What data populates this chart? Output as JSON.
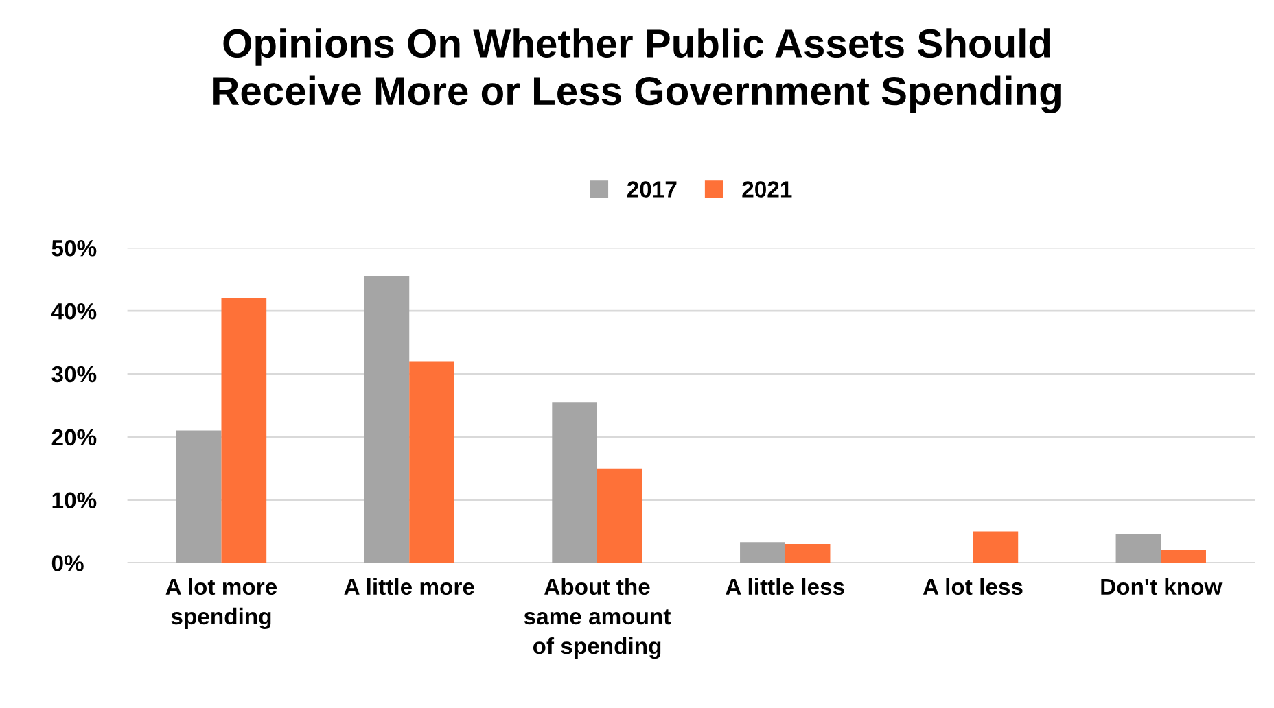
{
  "chart_data": {
    "type": "bar",
    "title": "Opinions On Whether Public Assets Should\nReceive More or Less Government Spending",
    "categories": [
      "A lot more\nspending",
      "A little more",
      "About the\nsame amount\nof spending",
      "A little less",
      "A lot less",
      "Don't know"
    ],
    "series": [
      {
        "name": "2017",
        "color": "#a5a5a5",
        "values": [
          21,
          45.5,
          25.5,
          3.3,
          null,
          4.5
        ]
      },
      {
        "name": "2021",
        "color": "#fe7138",
        "values": [
          42,
          32,
          15,
          3,
          5,
          2
        ]
      }
    ],
    "ylim": [
      0,
      50
    ],
    "yticks": [
      {
        "value": 0,
        "label": "0%"
      },
      {
        "value": 10,
        "label": "10%"
      },
      {
        "value": 20,
        "label": "20%"
      },
      {
        "value": 30,
        "label": "30%"
      },
      {
        "value": 40,
        "label": "40%"
      },
      {
        "value": 50,
        "label": "50%"
      }
    ],
    "grid": "y",
    "legend": "top"
  }
}
